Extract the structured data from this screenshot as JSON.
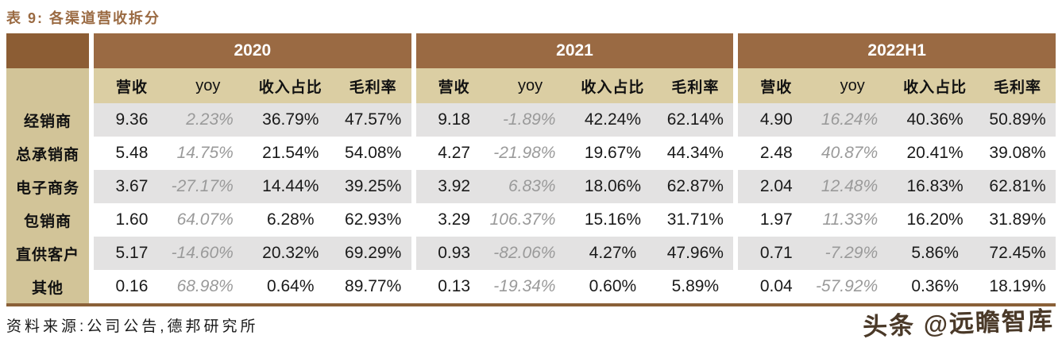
{
  "title": "表 9: 各渠道营收拆分",
  "source": "资料来源:公司公告,德邦研究所",
  "watermark": "头条 @远瞻智库",
  "colors": {
    "title_brown": "#9A6A42",
    "year_header_bg": "#9A6A43",
    "corner_cell_bg": "#8C5D34",
    "subheader_bg": "#DBCEA3",
    "label_column_bg": "#D2C498",
    "stripe_gray": "#E3E2E2",
    "bottom_border": "#8A6038",
    "yoy_text": "#9A9A9A"
  },
  "table": {
    "year_groups": [
      "2020",
      "2021",
      "2022H1"
    ],
    "sub_headers": [
      "营收",
      "yoy",
      "收入占比",
      "毛利率"
    ],
    "rows": [
      {
        "label": "经销商",
        "values": [
          "9.36",
          "2.23%",
          "36.79%",
          "47.57%",
          "9.18",
          "-1.89%",
          "42.24%",
          "62.14%",
          "4.90",
          "16.24%",
          "40.36%",
          "50.89%"
        ]
      },
      {
        "label": "总承销商",
        "values": [
          "5.48",
          "14.75%",
          "21.54%",
          "54.08%",
          "4.27",
          "-21.98%",
          "19.67%",
          "44.34%",
          "2.48",
          "40.87%",
          "20.41%",
          "39.08%"
        ]
      },
      {
        "label": "电子商务",
        "values": [
          "3.67",
          "-27.17%",
          "14.44%",
          "39.25%",
          "3.92",
          "6.83%",
          "18.06%",
          "62.87%",
          "2.04",
          "12.48%",
          "16.83%",
          "62.81%"
        ]
      },
      {
        "label": "包销商",
        "values": [
          "1.60",
          "64.07%",
          "6.28%",
          "62.93%",
          "3.29",
          "106.37%",
          "15.16%",
          "31.71%",
          "1.97",
          "11.33%",
          "16.20%",
          "31.89%"
        ]
      },
      {
        "label": "直供客户",
        "values": [
          "5.17",
          "-14.60%",
          "20.32%",
          "69.29%",
          "0.93",
          "-82.06%",
          "4.27%",
          "47.96%",
          "0.71",
          "-7.29%",
          "5.86%",
          "72.45%"
        ]
      },
      {
        "label": "其他",
        "values": [
          "0.16",
          "68.98%",
          "0.64%",
          "89.77%",
          "0.13",
          "-19.34%",
          "0.60%",
          "5.89%",
          "0.04",
          "-57.92%",
          "0.36%",
          "18.19%"
        ]
      }
    ]
  }
}
